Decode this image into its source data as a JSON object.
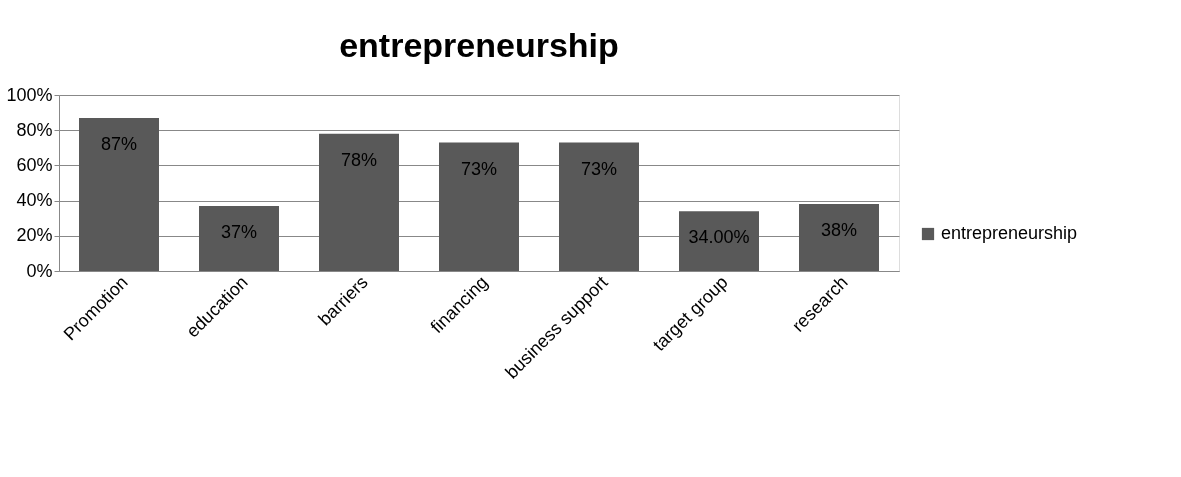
{
  "chart_data": {
    "type": "bar",
    "title": "entrepreneurship",
    "categories": [
      "Promotion",
      "education",
      "barriers",
      "financing",
      "business support",
      "target group",
      "research"
    ],
    "series": [
      {
        "name": "entrepreneurship",
        "color": "#595959",
        "values": [
          87,
          37,
          78,
          73,
          73,
          34,
          38
        ],
        "value_labels": [
          "87%",
          "37%",
          "78%",
          "73%",
          "73%",
          "34.00%",
          "38%"
        ]
      }
    ],
    "ylim": [
      0,
      100
    ],
    "yticks": [
      {
        "value": 0,
        "label": "0%"
      },
      {
        "value": 20,
        "label": "20%"
      },
      {
        "value": 40,
        "label": "40%"
      },
      {
        "value": 60,
        "label": "60%"
      },
      {
        "value": 80,
        "label": "80%"
      },
      {
        "value": 100,
        "label": "100%"
      }
    ],
    "grid": "y",
    "legend": "right"
  }
}
